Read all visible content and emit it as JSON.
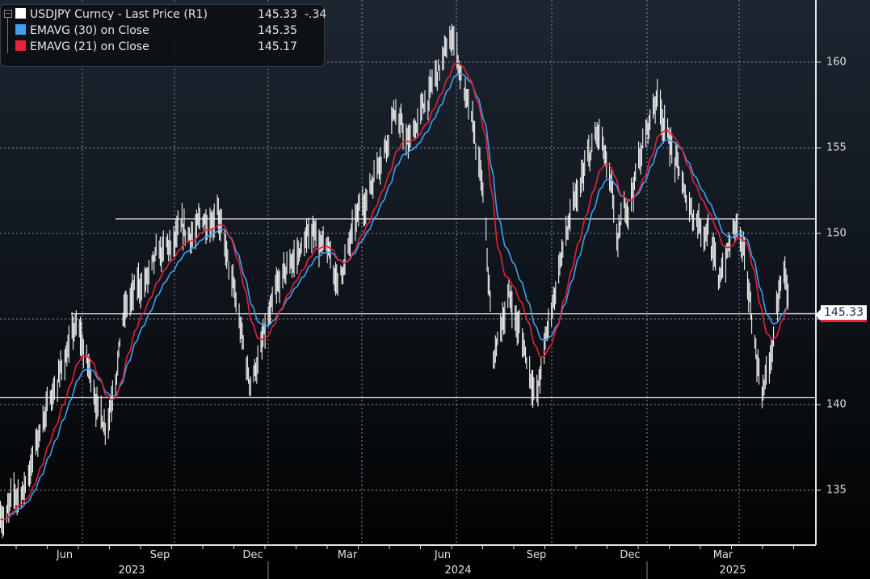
{
  "legend": {
    "items": [
      {
        "label": "USDJPY Curncy - Last Price (R1)",
        "value": "145.33",
        "change": "-.34",
        "color": "#ffffff"
      },
      {
        "label": "EMAVG (30)  on Close",
        "value": "145.35",
        "color": "#3fa0f0"
      },
      {
        "label": "EMAVG (21)  on Close",
        "value": "145.17",
        "color": "#e8203a"
      }
    ]
  },
  "price_tag": "145.33",
  "chart_data": {
    "type": "line",
    "title": "USDJPY Curncy - Last Price",
    "y_ticks": [
      "135",
      "140",
      "145",
      "150",
      "155",
      "160"
    ],
    "ylim": [
      131.5,
      163.5
    ],
    "x_ticks": [
      "Jun",
      "Sep",
      "Dec",
      "Mar",
      "Jun",
      "Sep",
      "Dec",
      "Mar"
    ],
    "x_years": [
      "2023",
      "2024",
      "2025"
    ],
    "grid": true,
    "legend_position": "top-left",
    "horizontal_levels": [
      150.85,
      145.3,
      140.4
    ],
    "price_keypoints": [
      [
        "2023-04-18",
        133.3
      ],
      [
        "2023-05-10",
        135
      ],
      [
        "2023-05-31",
        139.5
      ],
      [
        "2023-06-30",
        144.6
      ],
      [
        "2023-07-28",
        138.5
      ],
      [
        "2023-08-15",
        145.5
      ],
      [
        "2023-09-30",
        149.2
      ],
      [
        "2023-10-20",
        149.8
      ],
      [
        "2023-11-13",
        151.6
      ],
      [
        "2023-12-14",
        141.2
      ],
      [
        "2024-01-20",
        148
      ],
      [
        "2024-02-15",
        150.2
      ],
      [
        "2024-03-08",
        147.2
      ],
      [
        "2024-04-15",
        154
      ],
      [
        "2024-05-01",
        157.2
      ],
      [
        "2024-05-15",
        155.2
      ],
      [
        "2024-06-28",
        161.5
      ],
      [
        "2024-07-25",
        153
      ],
      [
        "2024-08-05",
        142.5
      ],
      [
        "2024-08-20",
        146.5
      ],
      [
        "2024-09-16",
        140.6
      ],
      [
        "2024-10-10",
        149
      ],
      [
        "2024-11-15",
        156
      ],
      [
        "2024-12-03",
        149.6
      ],
      [
        "2025-01-10",
        158.2
      ],
      [
        "2025-02-07",
        151.8
      ],
      [
        "2025-02-28",
        150.2
      ],
      [
        "2025-03-10",
        147.2
      ],
      [
        "2025-03-28",
        150.8
      ],
      [
        "2025-04-21",
        140.6
      ],
      [
        "2025-04-30",
        143
      ],
      [
        "2025-05-12",
        148
      ],
      [
        "2025-05-18",
        145.33
      ]
    ],
    "series": [
      {
        "name": "USDJPY Last Price",
        "color": "#ffffff",
        "style": "high-low bars"
      },
      {
        "name": "EMAVG (30)",
        "period": 30,
        "color": "#3fa0f0"
      },
      {
        "name": "EMAVG (21)",
        "period": 21,
        "color": "#e8203a"
      }
    ]
  }
}
